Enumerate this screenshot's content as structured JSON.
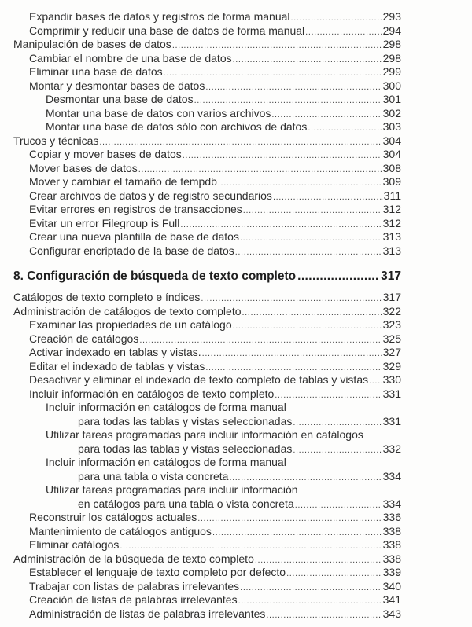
{
  "section_before": [
    {
      "level": 1,
      "text": "Expandir bases de datos y registros de forma manual",
      "page": "293"
    },
    {
      "level": 1,
      "text": "Comprimir y reducir una base de datos de forma manual",
      "page": "294"
    },
    {
      "level": 0,
      "text": "Manipulación de bases de datos",
      "page": "298"
    },
    {
      "level": 1,
      "text": "Cambiar el nombre de una base de datos",
      "page": "298"
    },
    {
      "level": 1,
      "text": "Eliminar una base de datos",
      "page": "299"
    },
    {
      "level": 1,
      "text": "Montar y desmontar bases de datos",
      "page": "300"
    },
    {
      "level": 2,
      "text": "Desmontar una base de datos",
      "page": "301"
    },
    {
      "level": 2,
      "text": "Montar una base de datos con varios archivos",
      "page": "302"
    },
    {
      "level": 2,
      "text": "Montar una base de datos sólo con archivos de datos",
      "page": "303"
    },
    {
      "level": 0,
      "text": "Trucos y técnicas",
      "page": "304"
    },
    {
      "level": 1,
      "text": "Copiar y mover bases de datos",
      "page": "304"
    },
    {
      "level": 1,
      "text": "Mover bases de datos",
      "page": "308"
    },
    {
      "level": 1,
      "text": "Mover y cambiar el tamaño de tempdb",
      "page": "309"
    },
    {
      "level": 1,
      "text": "Crear archivos de datos y de registro secundarios",
      "page": "311"
    },
    {
      "level": 1,
      "text": "Evitar errores en registros de transacciones",
      "page": "312"
    },
    {
      "level": 1,
      "text": "Evitar un error Filegroup is Full",
      "page": "312"
    },
    {
      "level": 1,
      "text": "Crear una nueva plantilla de base de datos",
      "page": "313"
    },
    {
      "level": 1,
      "text": "Configurar encriptado de la base de datos",
      "page": "313"
    }
  ],
  "chapter": {
    "title": "8. Configuración de búsqueda de texto completo",
    "page": "317"
  },
  "chapter_entries": [
    {
      "level": 0,
      "text": "Catálogos de texto completo e índices",
      "page": "317"
    },
    {
      "level": 0,
      "text": "Administración de catálogos de texto completo",
      "page": "322"
    },
    {
      "level": 1,
      "text": "Examinar las propiedades de un catálogo",
      "page": "323"
    },
    {
      "level": 1,
      "text": "Creación de catálogos",
      "page": "325"
    },
    {
      "level": 1,
      "text": "Activar indexado en tablas y vistas.",
      "page": "327"
    },
    {
      "level": 1,
      "text": "Editar el indexado de tablas y vistas",
      "page": "329"
    },
    {
      "level": 1,
      "text": "Desactivar y eliminar el indexado de texto completo de tablas y vistas",
      "page": "330"
    },
    {
      "level": 1,
      "text": "Incluir información en catálogos de texto completo",
      "page": "331"
    },
    {
      "level": 2,
      "text": "Incluir información en catálogos de forma manual",
      "continuation": "para todas las tablas y vistas seleccionadas",
      "page": "331"
    },
    {
      "level": 2,
      "text": "Utilizar tareas programadas para incluir información en catálogos",
      "continuation": "para todas las tablas y vistas seleccionadas",
      "page": "332"
    },
    {
      "level": 2,
      "text": "Incluir información en catálogos de forma manual",
      "continuation": "para una tabla o vista concreta",
      "page": "334"
    },
    {
      "level": 2,
      "text": "Utilizar tareas programadas para incluir información",
      "continuation": "en catálogos para una tabla o vista concreta",
      "page": "334"
    },
    {
      "level": 1,
      "text": "Reconstruir los catálogos actuales",
      "page": "336"
    },
    {
      "level": 1,
      "text": "Mantenimiento de catálogos antiguos",
      "page": "338"
    },
    {
      "level": 1,
      "text": "Eliminar catálogos",
      "page": "338"
    },
    {
      "level": 0,
      "text": "Administración de la búsqueda de texto completo",
      "page": "338"
    },
    {
      "level": 1,
      "text": "Establecer el lenguaje de texto completo por defecto",
      "page": "339"
    },
    {
      "level": 1,
      "text": "Trabajar con listas de palabras irrelevantes",
      "page": "340"
    },
    {
      "level": 1,
      "text": "Creación de listas de palabras irrelevantes",
      "page": "341"
    },
    {
      "level": 1,
      "text": "Administración de listas de palabras irrelevantes",
      "page": "343"
    }
  ]
}
